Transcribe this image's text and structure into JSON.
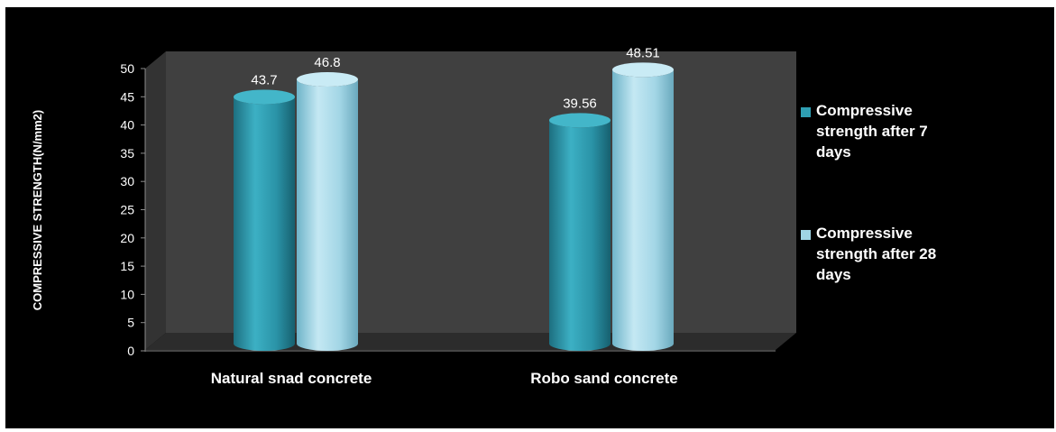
{
  "chart_data": {
    "type": "bar",
    "style": "3d-cylinder",
    "title": "",
    "xlabel": "",
    "ylabel": "COMPRESSIVE STRENGTH(N/mm2)",
    "ylim": [
      0,
      50
    ],
    "ytick_step": 5,
    "yticks": [
      "0",
      "5",
      "10",
      "15",
      "20",
      "25",
      "30",
      "35",
      "40",
      "45",
      "50"
    ],
    "categories": [
      "Natural snad concrete",
      "Robo sand concrete"
    ],
    "series": [
      {
        "name": "Compressive strength after 7 days",
        "legend_lines": [
          "Compressive",
          "strength after 7",
          "days"
        ],
        "values": [
          43.7,
          39.56
        ],
        "value_labels": [
          "43.7",
          "39.56"
        ],
        "color": "#2f9fb3"
      },
      {
        "name": "Compressive strength after 28 days",
        "legend_lines": [
          "Compressive",
          "strength after 28",
          "days"
        ],
        "values": [
          46.8,
          48.51
        ],
        "value_labels": [
          "46.8",
          "48.51"
        ],
        "color": "#9fd4e4"
      }
    ],
    "grid": false,
    "legend_position": "right",
    "background_color": "#000000",
    "wall_color": "#404040",
    "floor_color": "#2f2f2f"
  }
}
